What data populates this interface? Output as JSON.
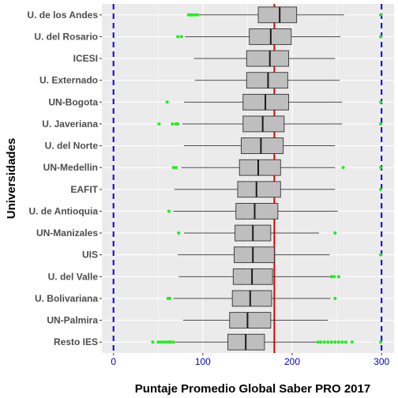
{
  "chart_data": {
    "type": "boxplot",
    "orientation": "horizontal",
    "xlabel": "Puntaje Promedio Global Saber PRO 2017",
    "ylabel": "Universidades",
    "xlim": [
      -13,
      314
    ],
    "xticks": [
      0,
      100,
      200,
      300
    ],
    "grid": true,
    "legend": "none",
    "vlines": [
      {
        "x": 0,
        "style": "dashed",
        "color": "#0000ee"
      },
      {
        "x": 300,
        "style": "dashed",
        "color": "#0000ee"
      },
      {
        "x": 180,
        "style": "solid",
        "color": "#dd0000"
      }
    ],
    "colors": {
      "panel": "#ebebeb",
      "grid": "#ffffff",
      "box_fill": "#bebebe",
      "box_stroke": "#333333",
      "outlier": "#22ee22",
      "tick_label_x": "#0000cc",
      "tick_label_y": "#4d4d4d"
    },
    "categories": [
      "U. de los Andes",
      "U. del Rosario",
      "ICESI",
      "U. Externado",
      "UN-Bogota",
      "U. Javeriana",
      "U. del Norte",
      "UN-Medellin",
      "EAFIT",
      "U. de Antioquia",
      "UN-Manizales",
      "UIS",
      "U. del Valle",
      "U. Bolivariana",
      "UN-Palmira",
      "Resto IES"
    ],
    "boxes": [
      {
        "min": 88,
        "q1": 162,
        "median": 186,
        "q3": 205,
        "max": 258,
        "outliers": [
          84,
          86,
          88,
          91,
          94,
          299
        ]
      },
      {
        "min": 80,
        "q1": 152,
        "median": 176,
        "q3": 199,
        "max": 254,
        "outliers": [
          72,
          76,
          299
        ]
      },
      {
        "min": 90,
        "q1": 149,
        "median": 175,
        "q3": 196,
        "max": 248,
        "outliers": []
      },
      {
        "min": 91,
        "q1": 149,
        "median": 173,
        "q3": 195,
        "max": 253,
        "outliers": []
      },
      {
        "min": 79,
        "q1": 145,
        "median": 170,
        "q3": 196,
        "max": 256,
        "outliers": [
          60,
          299
        ]
      },
      {
        "min": 77,
        "q1": 145,
        "median": 167,
        "q3": 191,
        "max": 256,
        "outliers": [
          51,
          66,
          70,
          72,
          299
        ]
      },
      {
        "min": 79,
        "q1": 143,
        "median": 165,
        "q3": 190,
        "max": 248,
        "outliers": []
      },
      {
        "min": 76,
        "q1": 141,
        "median": 162,
        "q3": 187,
        "max": 248,
        "outliers": [
          67,
          70,
          257,
          299
        ]
      },
      {
        "min": 68,
        "q1": 139,
        "median": 160,
        "q3": 187,
        "max": 248,
        "outliers": [
          299
        ]
      },
      {
        "min": 67,
        "q1": 137,
        "median": 158,
        "q3": 184,
        "max": 251,
        "outliers": [
          62
        ]
      },
      {
        "min": 79,
        "q1": 136,
        "median": 156,
        "q3": 176,
        "max": 230,
        "outliers": [
          73,
          248
        ]
      },
      {
        "min": 72,
        "q1": 135,
        "median": 156,
        "q3": 180,
        "max": 242,
        "outliers": [
          299
        ]
      },
      {
        "min": 73,
        "q1": 134,
        "median": 155,
        "q3": 178,
        "max": 243,
        "outliers": [
          244,
          247,
          252
        ]
      },
      {
        "min": 67,
        "q1": 133,
        "median": 153,
        "q3": 177,
        "max": 243,
        "outliers": [
          61,
          63,
          248
        ]
      },
      {
        "min": 78,
        "q1": 130,
        "median": 150,
        "q3": 176,
        "max": 240,
        "outliers": []
      },
      {
        "min": 69,
        "q1": 128,
        "median": 148,
        "q3": 169,
        "max": 228,
        "outliers": [
          44,
          50,
          53,
          56,
          59,
          62,
          64,
          67,
          229,
          232,
          236,
          240,
          244,
          248,
          252,
          256,
          260,
          267,
          299
        ]
      }
    ]
  }
}
